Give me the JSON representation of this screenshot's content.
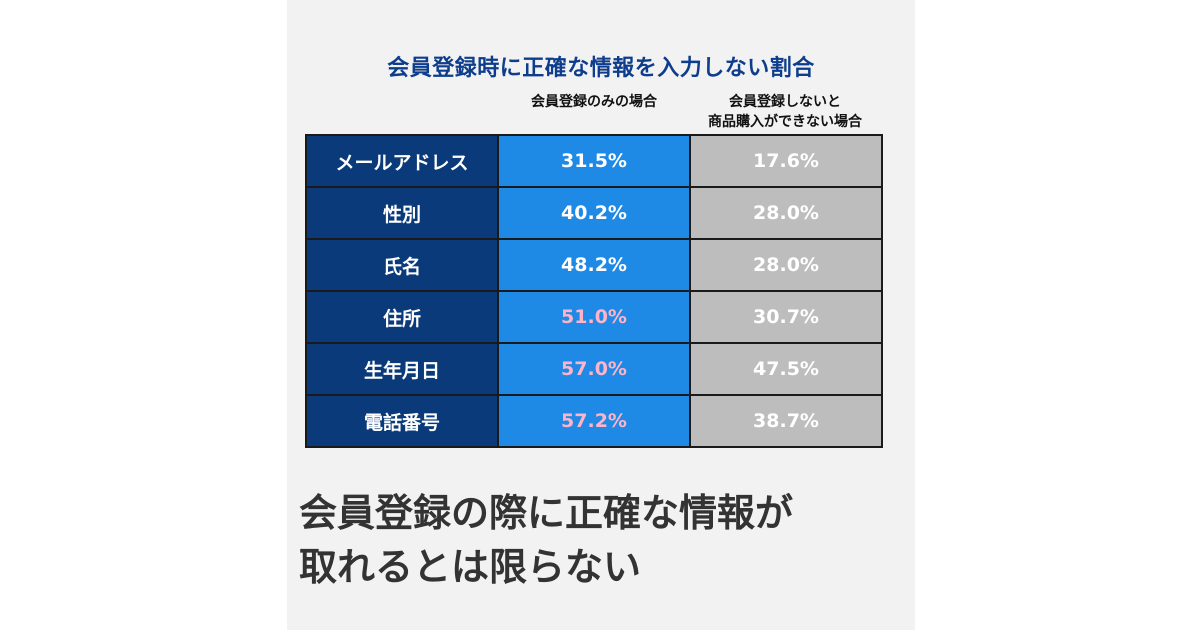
{
  "chart_data": {
    "type": "table",
    "title": "会員登録時に正確な情報を入力しない割合",
    "columns": [
      "会員登録のみの場合",
      "会員登録しないと\n商品購入ができない場合"
    ],
    "rows": [
      {
        "label": "メールアドレス",
        "values": [
          "31.5%",
          "17.6%"
        ],
        "highlight": false
      },
      {
        "label": "性別",
        "values": [
          "40.2%",
          "28.0%"
        ],
        "highlight": false
      },
      {
        "label": "氏名",
        "values": [
          "48.2%",
          "28.0%"
        ],
        "highlight": false
      },
      {
        "label": "住所",
        "values": [
          "51.0%",
          "30.7%"
        ],
        "highlight": true
      },
      {
        "label": "生年月日",
        "values": [
          "57.0%",
          "47.5%"
        ],
        "highlight": true
      },
      {
        "label": "電話番号",
        "values": [
          "57.2%",
          "38.7%"
        ],
        "highlight": true
      }
    ],
    "colors": {
      "title": "#0d3d8c",
      "label_bg": "#0a3a7a",
      "col1_bg": "#1e8ae6",
      "col2_bg": "#bdbdbd",
      "highlight_text": "#ffb3c7"
    }
  },
  "caption": {
    "line1": "会員登録の際に正確な情報が",
    "line2": "取れるとは限らない"
  }
}
